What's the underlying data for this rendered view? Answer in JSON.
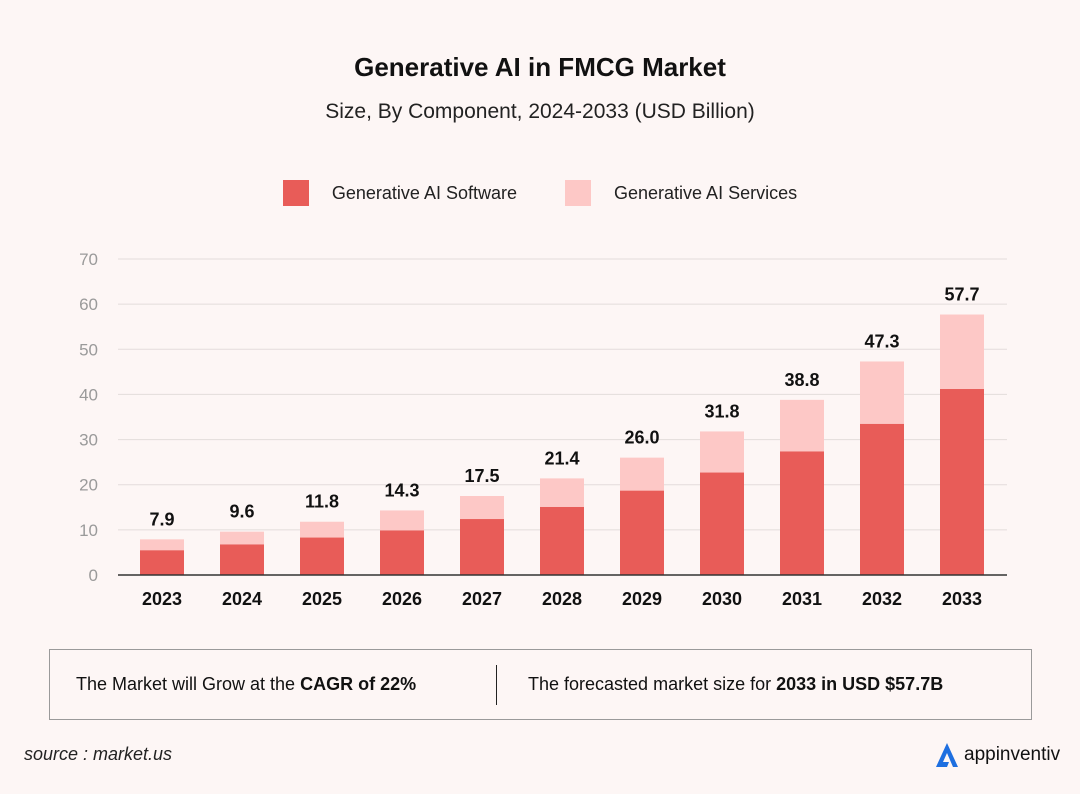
{
  "header": {
    "title": "Generative AI in FMCG Market",
    "subtitle": "Size, By Component, 2024-2033 (USD Billion)"
  },
  "legend": {
    "software": "Generative AI Software",
    "services": "Generative AI Services"
  },
  "colors": {
    "software": "#e85c58",
    "services": "#fdc8c6",
    "grid": "#e3dcdb",
    "axis": "#333333",
    "tick_text": "#9a9a9a",
    "brand_blue": "#1e6fe0"
  },
  "chart_data": {
    "type": "bar",
    "stacked": true,
    "title": "Generative AI in FMCG Market",
    "subtitle": "Size, By Component, 2024-2033 (USD Billion)",
    "categories": [
      "2023",
      "2024",
      "2025",
      "2026",
      "2027",
      "2028",
      "2029",
      "2030",
      "2031",
      "2032",
      "2033"
    ],
    "series": [
      {
        "name": "Generative AI Software",
        "values": [
          5.5,
          6.8,
          8.3,
          9.9,
          12.4,
          15.1,
          18.7,
          22.7,
          27.4,
          33.5,
          41.2
        ]
      },
      {
        "name": "Generative AI Services",
        "values": [
          2.4,
          2.8,
          3.5,
          4.4,
          5.1,
          6.3,
          7.3,
          9.1,
          11.4,
          13.8,
          16.5
        ]
      }
    ],
    "totals_labels": [
      "7.9",
      "9.6",
      "11.8",
      "14.3",
      "17.5",
      "21.4",
      "26.0",
      "31.8",
      "38.8",
      "47.3",
      "57.7"
    ],
    "ylim": [
      0,
      70
    ],
    "yticks": [
      "0",
      "10",
      "20",
      "30",
      "40",
      "50",
      "60",
      "70"
    ],
    "xlabel": "",
    "ylabel": "",
    "grid": true,
    "legend_position": "top-center"
  },
  "info": {
    "left_prefix": "The Market will Grow at the ",
    "left_bold": "CAGR of 22%",
    "right_prefix": "The forecasted market size for ",
    "right_bold": "2033 in USD $57.7B"
  },
  "footer": {
    "source": "source : market.us",
    "brand": "appinventiv",
    "brand_icon": "appinventiv-logo-icon"
  }
}
